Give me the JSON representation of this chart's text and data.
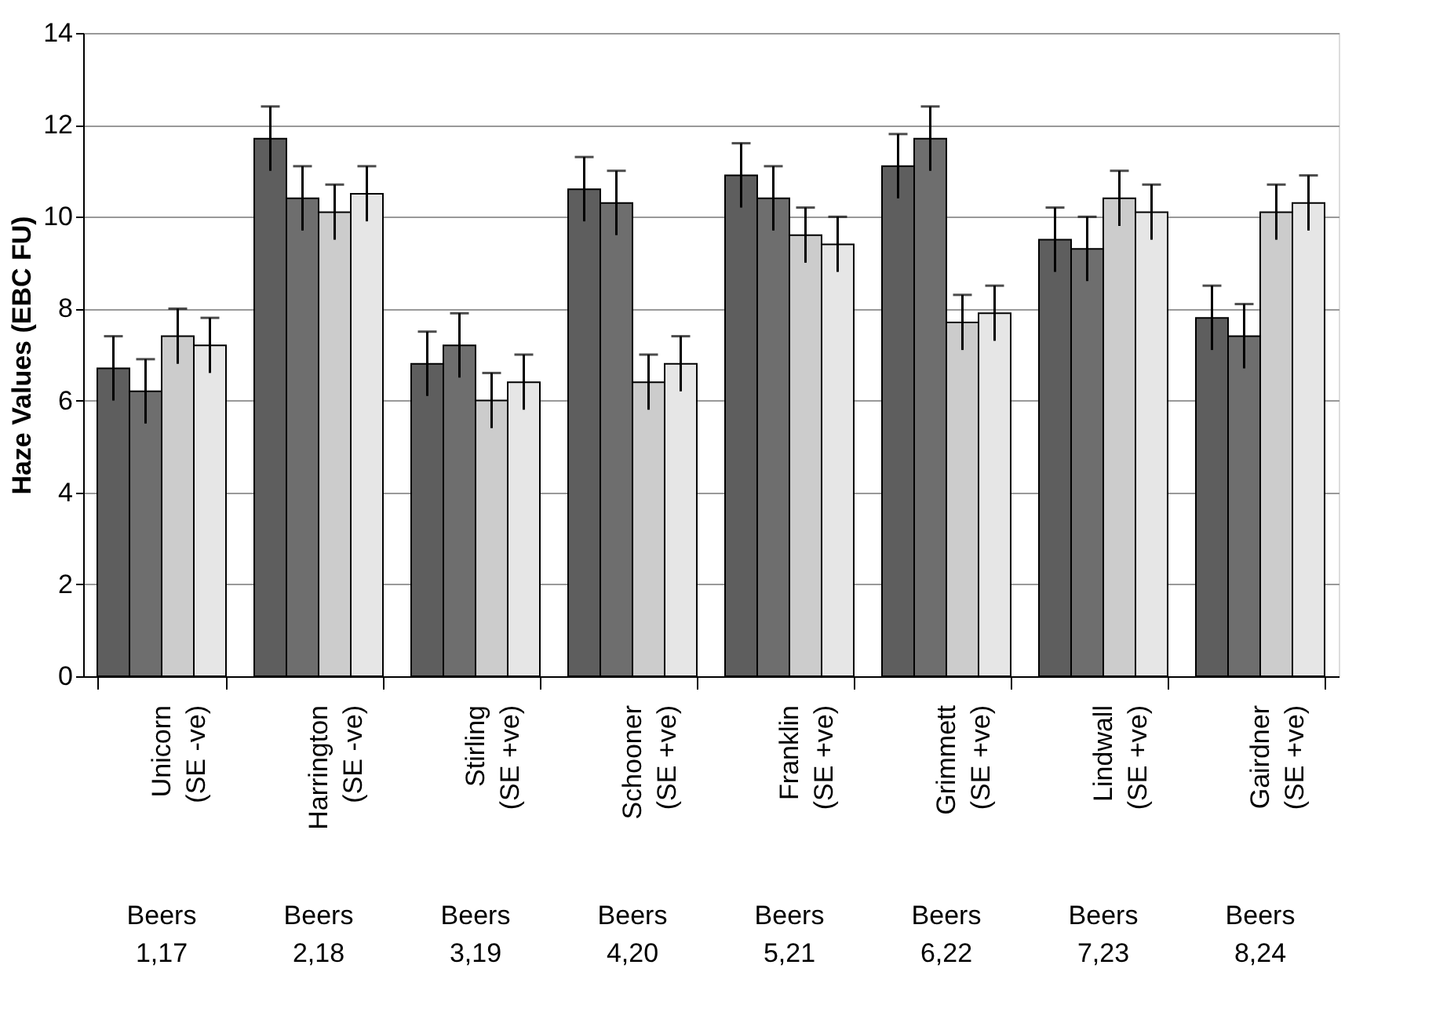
{
  "chart_data": {
    "type": "bar",
    "ylabel": "Haze Values (EBC FU)",
    "categories": [
      "Unicorn (SE -ve)",
      "Harrington (SE -ve)",
      "Stirling (SE +ve)",
      "Schooner (SE +ve)",
      "Franklin (SE +ve)",
      "Grimmett (SE +ve)",
      "Lindwall (SE +ve)",
      "Gairdner (SE +ve)"
    ],
    "series": [
      {
        "color": "#5e5e5e",
        "values": [
          6.7,
          11.7,
          6.8,
          10.6,
          10.9,
          11.1,
          9.5,
          7.8
        ],
        "errors": [
          0.7,
          0.7,
          0.7,
          0.7,
          0.7,
          0.7,
          0.7,
          0.7
        ]
      },
      {
        "color": "#6e6e6e",
        "values": [
          6.2,
          10.4,
          7.2,
          10.3,
          10.4,
          11.7,
          9.3,
          7.4
        ],
        "errors": [
          0.7,
          0.7,
          0.7,
          0.7,
          0.7,
          0.7,
          0.7,
          0.7
        ]
      },
      {
        "color": "#cccccc",
        "values": [
          7.4,
          10.1,
          6.0,
          6.4,
          9.6,
          7.7,
          10.4,
          10.1
        ],
        "errors": [
          0.6,
          0.6,
          0.6,
          0.6,
          0.6,
          0.6,
          0.6,
          0.6
        ]
      },
      {
        "color": "#e6e6e6",
        "values": [
          7.2,
          10.5,
          6.4,
          6.8,
          9.4,
          7.9,
          10.1,
          10.3
        ],
        "errors": [
          0.6,
          0.6,
          0.6,
          0.6,
          0.6,
          0.6,
          0.6,
          0.6
        ]
      }
    ],
    "ylim": [
      0,
      14
    ],
    "yticks": [
      0,
      2,
      4,
      6,
      8,
      10,
      12,
      14
    ],
    "grid": "y",
    "legend": false,
    "annotations": [
      "Beers 1,17",
      "Beers 2,18",
      "Beers 3,19",
      "Beers 4,20",
      "Beers 5,21",
      "Beers 6,22",
      "Beers 7,23",
      "Beers 8,24"
    ]
  }
}
